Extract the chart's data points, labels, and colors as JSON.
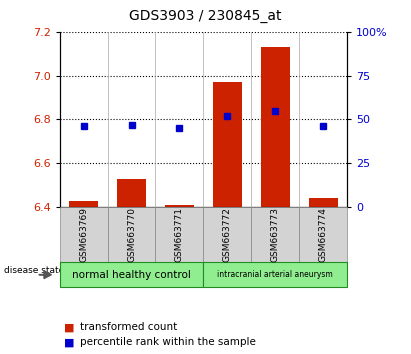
{
  "title": "GDS3903 / 230845_at",
  "samples": [
    "GSM663769",
    "GSM663770",
    "GSM663771",
    "GSM663772",
    "GSM663773",
    "GSM663774"
  ],
  "red_values": [
    6.43,
    6.53,
    6.41,
    6.97,
    7.13,
    6.44
  ],
  "blue_values": [
    46,
    47,
    45,
    52,
    55,
    46
  ],
  "ylim_left": [
    6.4,
    7.2
  ],
  "ylim_right": [
    0,
    100
  ],
  "yticks_left": [
    6.4,
    6.6,
    6.8,
    7.0,
    7.2
  ],
  "yticks_right": [
    0,
    25,
    50,
    75,
    100
  ],
  "group_labels": [
    "normal healthy control",
    "intracranial arterial aneurysm"
  ],
  "group_starts": [
    0,
    3
  ],
  "group_ends": [
    3,
    6
  ],
  "group_colors": [
    "#90EE90",
    "#90EE90"
  ],
  "group_border_color": "#228B22",
  "disease_label": "disease state",
  "legend_red": "transformed count",
  "legend_blue": "percentile rank within the sample",
  "bar_color": "#CC2200",
  "dot_color": "#0000CC",
  "bar_bottom": 6.4,
  "bar_width": 0.6,
  "sample_box_color": "#D3D3D3",
  "grid_linestyle": "dotted",
  "title_fontsize": 10,
  "tick_fontsize": 8,
  "label_fontsize": 7,
  "legend_fontsize": 7.5
}
